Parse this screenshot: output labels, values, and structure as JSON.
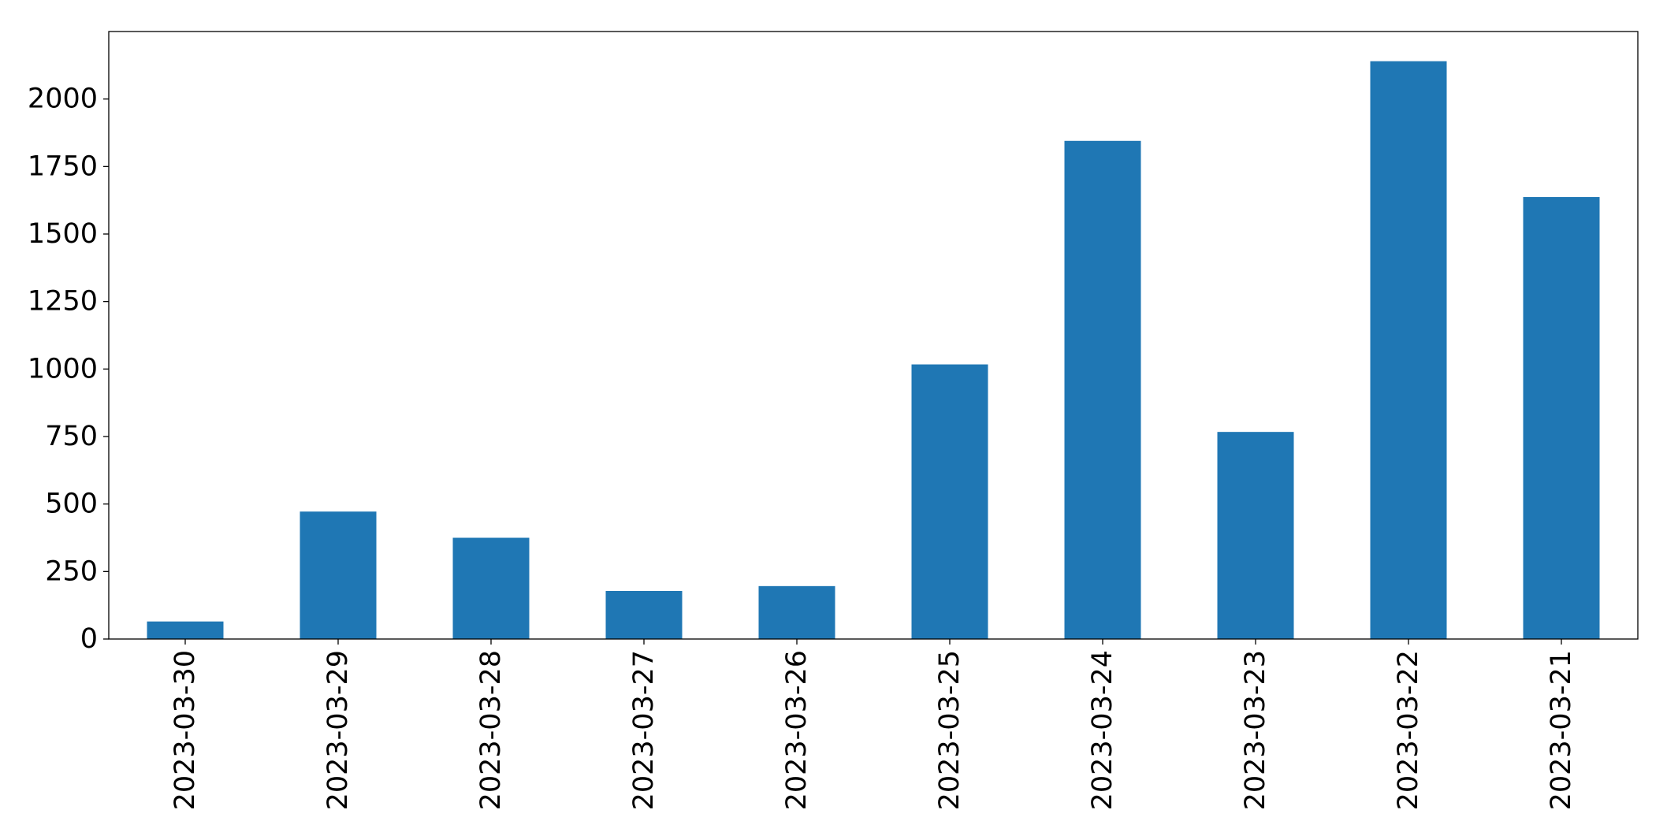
{
  "chart_data": {
    "type": "bar",
    "title": "",
    "xlabel": "",
    "ylabel": "",
    "categories": [
      "2023-03-30",
      "2023-03-29",
      "2023-03-28",
      "2023-03-27",
      "2023-03-26",
      "2023-03-25",
      "2023-03-24",
      "2023-03-23",
      "2023-03-22",
      "2023-03-21"
    ],
    "values": [
      65,
      472,
      375,
      178,
      196,
      1017,
      1845,
      767,
      2140,
      1637
    ],
    "ylim": [
      0,
      2250
    ],
    "yticks": [
      0,
      250,
      500,
      750,
      1000,
      1250,
      1500,
      1750,
      2000
    ],
    "ytick_labels": [
      "0",
      "250",
      "500",
      "750",
      "1000",
      "1250",
      "1500",
      "1750",
      "2000"
    ],
    "bar_color": "#1f77b4",
    "grid": false,
    "legend": "none"
  }
}
